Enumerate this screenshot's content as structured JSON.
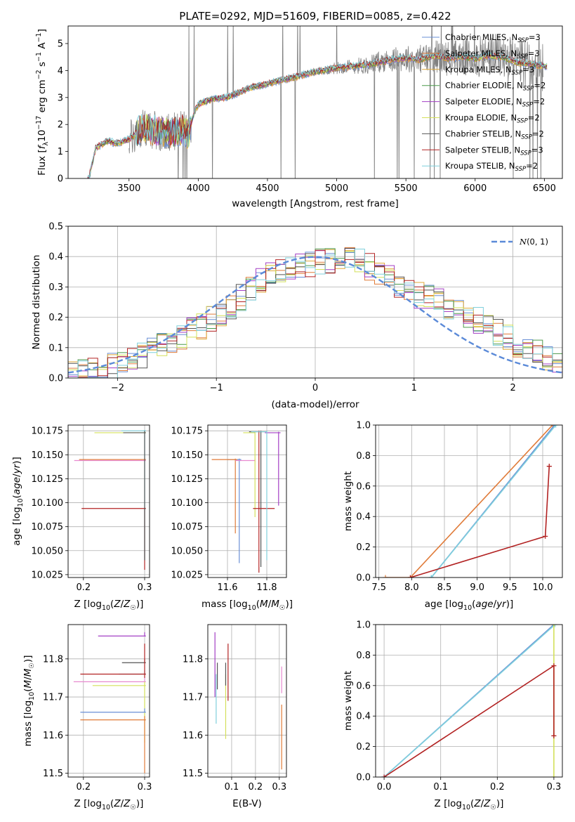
{
  "figure": {
    "title": "PLATE=0292, MJD=51609, FIBERID=0085, z=0.422"
  },
  "colors": {
    "Chabrier MILES": "#6a8fd6",
    "Salpeter MILES": "#e07b39",
    "Kroupa MILES": "#e0a93a",
    "Chabrier ELODIE": "#4c9a4c",
    "Salpeter ELODIE": "#a33fc4",
    "Kroupa ELODIE": "#d4e05a",
    "Chabrier STELIB": "#555555",
    "Salpeter STELIB": "#b22222",
    "Kroupa STELIB": "#7fd0dc",
    "Salpeter ELODIE pink": "#e88ad0",
    "data": "#808080",
    "gauss": "#5b8ad8"
  },
  "chart_data": [
    {
      "id": "spectrum",
      "type": "line",
      "xlabel": "wavelength [Angstrom, rest frame]",
      "ylabel": "Flux [f_λ 10^-17 erg cm^-2 s^-1 A^-1]",
      "xlim": [
        3060,
        6630
      ],
      "ylim": [
        0,
        5.65
      ],
      "xticks": [
        3500,
        4000,
        4500,
        5000,
        5500,
        6000,
        6500
      ],
      "yticks": [
        0,
        1,
        2,
        3,
        4,
        5
      ],
      "legend_position": "top-right",
      "legend": [
        {
          "name": "Chabrier MILES, N_SSP=3",
          "base": "Chabrier MILES, N",
          "sub": "SSP",
          "tail": "=3",
          "color": "#6a8fd6"
        },
        {
          "name": "Salpeter MILES, N_SSP=3",
          "base": "Salpeter MILES, N",
          "sub": "SSP",
          "tail": "=3",
          "color": "#e07b39"
        },
        {
          "name": "Kroupa MILES, N_SSP=3",
          "base": "Kroupa MILES, N",
          "sub": "SSP",
          "tail": "=3",
          "color": "#e0a93a"
        },
        {
          "name": "Chabrier ELODIE, N_SSP=2",
          "base": "Chabrier ELODIE, N",
          "sub": "SSP",
          "tail": "=2",
          "color": "#4c9a4c"
        },
        {
          "name": "Salpeter ELODIE, N_SSP=2",
          "base": "Salpeter ELODIE, N",
          "sub": "SSP",
          "tail": "=2",
          "color": "#a33fc4"
        },
        {
          "name": "Kroupa ELODIE, N_SSP=2",
          "base": "Kroupa ELODIE, N",
          "sub": "SSP",
          "tail": "=2",
          "color": "#d4e05a"
        },
        {
          "name": "Chabrier STELIB, N_SSP=2",
          "base": "Chabrier STELIB, N",
          "sub": "SSP",
          "tail": "=2",
          "color": "#555555"
        },
        {
          "name": "Salpeter STELIB, N_SSP=3",
          "base": "Salpeter STELIB, N",
          "sub": "SSP",
          "tail": "=3",
          "color": "#b22222"
        },
        {
          "name": "Kroupa STELIB, N_SSP=2",
          "base": "Kroupa STELIB, N",
          "sub": "SSP",
          "tail": "=2",
          "color": "#7fd0dc"
        }
      ],
      "model_anchors": {
        "x": [
          3210,
          3240,
          3260,
          3300,
          3350,
          3400,
          3450,
          3500,
          3550,
          3600,
          3700,
          3800,
          3900,
          3930,
          3960,
          4000,
          4100,
          4200,
          4300,
          4400,
          4500,
          4600,
          4700,
          4800,
          4900,
          5000,
          5100,
          5200,
          5300,
          5400,
          5500,
          5600,
          5700,
          5800,
          5900,
          6000,
          6100,
          6200,
          6300,
          6400,
          6500
        ],
        "y": [
          0,
          0.7,
          1.15,
          1.25,
          1.4,
          1.3,
          1.35,
          1.45,
          1.65,
          1.9,
          1.75,
          1.7,
          1.8,
          1.6,
          2.3,
          2.75,
          2.95,
          3.0,
          3.2,
          3.4,
          3.5,
          3.65,
          3.75,
          3.9,
          4.0,
          4.1,
          4.15,
          4.2,
          4.3,
          4.4,
          4.45,
          4.4,
          4.55,
          4.45,
          4.5,
          4.45,
          4.55,
          4.5,
          4.3,
          4.25,
          4.15
        ]
      },
      "data_range": [
        3500,
        6490
      ]
    },
    {
      "id": "residuals",
      "type": "histogram",
      "xlabel": "(data-model)/error",
      "ylabel": "Normed distribution",
      "xlim": [
        -2.5,
        2.5
      ],
      "ylim": [
        0,
        0.5
      ],
      "xticks": [
        -2,
        -1,
        0,
        1,
        2
      ],
      "yticks": [
        0.0,
        0.1,
        0.2,
        0.3,
        0.4,
        0.5
      ],
      "legend_position": "top-right",
      "legend_label": "N(0,1)",
      "bin_width": 0.1,
      "envelope": {
        "x": [
          -2.5,
          -2.0,
          -1.5,
          -1.0,
          -0.5,
          0.0,
          0.3,
          0.6,
          1.0,
          1.5,
          2.0,
          2.5
        ],
        "y": [
          0.01,
          0.04,
          0.11,
          0.2,
          0.33,
          0.38,
          0.4,
          0.36,
          0.28,
          0.22,
          0.12,
          0.05
        ]
      }
    },
    {
      "id": "age-vs-Z",
      "type": "errorbar",
      "xlabel": "Z [log10(Z/Z☉)]",
      "ylabel": "age [log10(age/yr)]",
      "xlim": [
        0.175,
        0.308
      ],
      "ylim": [
        10.022,
        10.181
      ],
      "xticks": [
        0.2,
        0.3
      ],
      "yticks": [
        10.025,
        10.05,
        10.075,
        10.1,
        10.125,
        10.15,
        10.175
      ],
      "points": [
        {
          "c": "#7fd0dc",
          "x": 0.3,
          "y": 10.175,
          "x0": 0.262,
          "x1": 0.302,
          "y0": 10.04,
          "y1": 10.176
        },
        {
          "c": "#d4e05a",
          "x": 0.3,
          "y": 10.173,
          "x0": 0.218,
          "x1": 0.302,
          "y0": 10.172,
          "y1": 10.174
        },
        {
          "c": "#e07b39",
          "x": 0.3,
          "y": 10.145,
          "x0": 0.193,
          "x1": 0.302,
          "y0": 10.144,
          "y1": 10.146
        },
        {
          "c": "#e88ad0",
          "x": 0.3,
          "y": 10.144,
          "x0": 0.185,
          "x1": 0.302,
          "y0": 10.143,
          "y1": 10.145
        },
        {
          "c": "#b22222",
          "x": 0.3,
          "y": 10.094,
          "x0": 0.197,
          "x1": 0.302,
          "y0": 10.03,
          "y1": 10.095
        },
        {
          "c": "#555555",
          "x": 0.3,
          "y": 10.173,
          "x0": 0.265,
          "x1": 0.302,
          "y0": 10.04,
          "y1": 10.175
        }
      ]
    },
    {
      "id": "age-vs-mass",
      "type": "errorbar",
      "xlabel": "mass [log10(M/M☉)]",
      "ylabel": "",
      "xlim": [
        11.5,
        11.9
      ],
      "ylim": [
        10.022,
        10.181
      ],
      "xticks": [
        11.6,
        11.8
      ],
      "yticks": [
        10.025,
        10.05,
        10.075,
        10.1,
        10.125,
        10.15,
        10.175
      ],
      "points": [
        {
          "c": "#a33fc4",
          "x": 11.86,
          "y": 10.173,
          "x0": 11.79,
          "x1": 11.87,
          "y0": 10.097,
          "y1": 10.174
        },
        {
          "c": "#6a8fd6",
          "x": 11.66,
          "y": 10.145,
          "x0": 11.6,
          "x1": 11.67,
          "y0": 10.037,
          "y1": 10.146
        },
        {
          "c": "#e07b39",
          "x": 11.64,
          "y": 10.145,
          "x0": 11.52,
          "x1": 11.65,
          "y0": 10.068,
          "y1": 10.146
        },
        {
          "c": "#e88ad0",
          "x": 11.74,
          "y": 10.144,
          "x0": 11.64,
          "x1": 11.74,
          "y0": 10.143,
          "y1": 10.145
        },
        {
          "c": "#d4e05a",
          "x": 11.74,
          "y": 10.173,
          "x0": 11.68,
          "x1": 11.74,
          "y0": 10.085,
          "y1": 10.174
        },
        {
          "c": "#555555",
          "x": 11.77,
          "y": 10.174,
          "x0": 11.71,
          "x1": 11.79,
          "y0": 10.033,
          "y1": 10.175
        },
        {
          "c": "#b22222",
          "x": 11.76,
          "y": 10.094,
          "x0": 11.73,
          "x1": 11.84,
          "y0": 10.027,
          "y1": 10.175
        },
        {
          "c": "#7fd0dc",
          "x": 11.8,
          "y": 10.174,
          "x0": 11.72,
          "x1": 11.8,
          "y0": 10.04,
          "y1": 10.175
        }
      ]
    },
    {
      "id": "massweight-vs-age",
      "type": "line",
      "xlabel": "age [log10(age/yr)]",
      "ylabel": "mass weight",
      "xlim": [
        7.45,
        10.3
      ],
      "ylim": [
        0,
        1
      ],
      "xticks": [
        7.5,
        8.0,
        8.5,
        9.0,
        9.5,
        10.0
      ],
      "yticks": [
        0.0,
        0.2,
        0.4,
        0.6,
        0.8,
        1.0
      ],
      "series": [
        {
          "c": "#e07b39",
          "x": [
            7.6,
            7.98,
            10.15
          ],
          "y": [
            0.0,
            0.0,
            1.0
          ]
        },
        {
          "c": "#6a8fd6",
          "x": [
            8.3,
            10.18
          ],
          "y": [
            0.0,
            1.0
          ]
        },
        {
          "c": "#7fd0dc",
          "x": [
            8.3,
            10.2
          ],
          "y": [
            0.0,
            1.0
          ]
        },
        {
          "c": "#b22222",
          "x": [
            7.98,
            10.04,
            10.1,
            10.1
          ],
          "y": [
            0.0,
            0.27,
            0.73,
            0.73
          ]
        }
      ]
    },
    {
      "id": "mass-vs-Z",
      "type": "errorbar",
      "xlabel": "Z [log10(Z/Z☉)]",
      "ylabel": "mass [log10(M/M☉)]",
      "xlim": [
        0.175,
        0.308
      ],
      "ylim": [
        11.49,
        11.89
      ],
      "xticks": [
        0.2,
        0.3
      ],
      "yticks": [
        11.5,
        11.6,
        11.7,
        11.8
      ],
      "points": [
        {
          "c": "#a33fc4",
          "x": 0.3,
          "y": 11.86,
          "x0": 0.224,
          "x1": 0.302,
          "y0": 11.86,
          "y1": 11.87
        },
        {
          "c": "#555555",
          "x": 0.3,
          "y": 11.79,
          "x0": 0.263,
          "x1": 0.302,
          "y0": 11.79,
          "y1": 11.8
        },
        {
          "c": "#7fd0dc",
          "x": 0.3,
          "y": 11.76,
          "x0": 0.258,
          "x1": 0.302,
          "y0": 11.76,
          "y1": 11.77
        },
        {
          "c": "#b22222",
          "x": 0.3,
          "y": 11.76,
          "x0": 0.195,
          "x1": 0.302,
          "y0": 11.75,
          "y1": 11.84
        },
        {
          "c": "#e88ad0",
          "x": 0.3,
          "y": 11.74,
          "x0": 0.184,
          "x1": 0.302,
          "y0": 11.74,
          "y1": 11.75
        },
        {
          "c": "#d4e05a",
          "x": 0.3,
          "y": 11.73,
          "x0": 0.215,
          "x1": 0.302,
          "y0": 11.58,
          "y1": 11.74
        },
        {
          "c": "#6a8fd6",
          "x": 0.3,
          "y": 11.66,
          "x0": 0.195,
          "x1": 0.302,
          "y0": 11.66,
          "y1": 11.67
        },
        {
          "c": "#e07b39",
          "x": 0.3,
          "y": 11.64,
          "x0": 0.195,
          "x1": 0.302,
          "y0": 11.5,
          "y1": 11.65
        }
      ]
    },
    {
      "id": "mass-vs-EBV",
      "type": "errorbar",
      "xlabel": "E(B-V)",
      "ylabel": "",
      "xlim": [
        0.0,
        0.33
      ],
      "ylim": [
        11.49,
        11.89
      ],
      "xticks": [
        0.1,
        0.2,
        0.3
      ],
      "yticks": [
        11.5,
        11.6,
        11.7,
        11.8
      ],
      "points": [
        {
          "c": "#a33fc4",
          "x": 0.03,
          "y": 11.76,
          "x0": 0.03,
          "x1": 0.03,
          "y0": 11.7,
          "y1": 11.87
        },
        {
          "c": "#7fd0dc",
          "x": 0.035,
          "y": 11.7,
          "x0": 0.035,
          "x1": 0.035,
          "y0": 11.63,
          "y1": 11.76
        },
        {
          "c": "#555555",
          "x": 0.04,
          "y": 11.76,
          "x0": 0.04,
          "x1": 0.04,
          "y0": 11.72,
          "y1": 11.79
        },
        {
          "c": "#d4e05a",
          "x": 0.075,
          "y": 11.7,
          "x0": 0.075,
          "x1": 0.075,
          "y0": 11.59,
          "y1": 11.76
        },
        {
          "c": "#555555",
          "x": 0.075,
          "y": 11.76,
          "x0": 0.075,
          "x1": 0.075,
          "y0": 11.73,
          "y1": 11.79
        },
        {
          "c": "#b22222",
          "x": 0.085,
          "y": 11.76,
          "x0": 0.085,
          "x1": 0.085,
          "y0": 11.69,
          "y1": 11.84
        },
        {
          "c": "#e88ad0",
          "x": 0.31,
          "y": 11.74,
          "x0": 0.31,
          "x1": 0.31,
          "y0": 11.71,
          "y1": 11.78
        },
        {
          "c": "#e07b39",
          "x": 0.31,
          "y": 11.6,
          "x0": 0.31,
          "x1": 0.31,
          "y0": 11.51,
          "y1": 11.68
        }
      ]
    },
    {
      "id": "massweight-vs-Z",
      "type": "line",
      "xlabel": "Z [log10(Z/Z☉)]",
      "ylabel": "mass weight",
      "xlim": [
        -0.015,
        0.315
      ],
      "ylim": [
        0,
        1
      ],
      "xticks": [
        0.0,
        0.1,
        0.2,
        0.3
      ],
      "yticks": [
        0.0,
        0.2,
        0.4,
        0.6,
        0.8,
        1.0
      ],
      "series": [
        {
          "c": "#6a8fd6",
          "x": [
            0.0,
            0.3
          ],
          "y": [
            0.0,
            1.0
          ]
        },
        {
          "c": "#7fd0dc",
          "x": [
            0.0,
            0.302
          ],
          "y": [
            0.0,
            1.0
          ]
        },
        {
          "c": "#d4e05a",
          "x": [
            0.3,
            0.3
          ],
          "y": [
            0.0,
            1.0
          ]
        },
        {
          "c": "#b22222",
          "x": [
            0.0,
            0.3,
            0.3,
            0.3
          ],
          "y": [
            0.0,
            0.73,
            0.27,
            0.27
          ]
        }
      ]
    }
  ]
}
